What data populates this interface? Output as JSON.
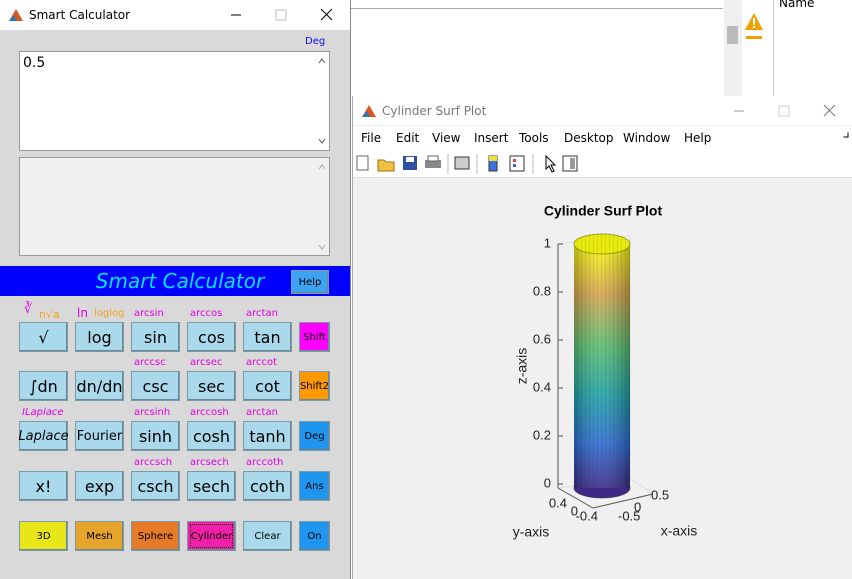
{
  "calculator": {
    "window_title": "Smart Calculator",
    "mode": "Deg",
    "input": "0.5",
    "banner": "Smart Calculator",
    "help": "Help",
    "rows": [
      {
        "buttons": [
          {
            "label": "√",
            "hints": [
              "∛",
              "n√a"
            ]
          },
          {
            "label": "log",
            "hints": [
              "ln",
              "loglog"
            ]
          },
          {
            "label": "sin",
            "hints": [
              "arcsin"
            ]
          },
          {
            "label": "cos",
            "hints": [
              "arccos"
            ]
          },
          {
            "label": "tan",
            "hints": [
              "arctan"
            ]
          },
          {
            "label": "Shift",
            "color": "#ff00ff"
          }
        ]
      },
      {
        "buttons": [
          {
            "label": "∫dn"
          },
          {
            "label": "dn/dn"
          },
          {
            "label": "csc",
            "hints": [
              "arccsc"
            ]
          },
          {
            "label": "sec",
            "hints": [
              "arcsec"
            ]
          },
          {
            "label": "cot",
            "hints": [
              "arccot"
            ]
          },
          {
            "label": "Shift2",
            "color": "#ff9900"
          }
        ]
      },
      {
        "buttons": [
          {
            "label": "Laplace",
            "hints": [
              "ILaplace"
            ]
          },
          {
            "label": "Fourier"
          },
          {
            "label": "sinh",
            "hints": [
              "arcsinh"
            ]
          },
          {
            "label": "cosh",
            "hints": [
              "arccosh"
            ]
          },
          {
            "label": "tanh",
            "hints": [
              "arctan"
            ]
          },
          {
            "label": "Deg",
            "color": "#1e96f0"
          }
        ]
      },
      {
        "buttons": [
          {
            "label": "x!"
          },
          {
            "label": "exp"
          },
          {
            "label": "csch",
            "hints": [
              "arccsch"
            ]
          },
          {
            "label": "sech",
            "hints": [
              "arcsech"
            ]
          },
          {
            "label": "coth",
            "hints": [
              "arccoth"
            ]
          },
          {
            "label": "Ans",
            "color": "#1e96f0"
          }
        ]
      },
      {
        "buttons": [
          {
            "label": "3D",
            "color": "#e6e619"
          },
          {
            "label": "Mesh",
            "color": "#e6a52a"
          },
          {
            "label": "Sphere",
            "color": "#e67a26"
          },
          {
            "label": "Cylinder",
            "color": "#f21fa8"
          },
          {
            "label": "Clear"
          },
          {
            "label": "On",
            "color": "#1e96f0"
          }
        ]
      }
    ]
  },
  "background": {
    "column_header": "Name"
  },
  "figure": {
    "window_title": "Cylinder Surf Plot",
    "menu": [
      "File",
      "Edit",
      "View",
      "Insert",
      "Tools",
      "Desktop",
      "Window",
      "Help"
    ],
    "plot": {
      "title": "Cylinder Surf Plot",
      "zticks": [
        "1",
        "0.8",
        "0.6",
        "0.4",
        "0.2",
        "0"
      ],
      "yticks": [
        "0.4",
        "0",
        "-0.4"
      ],
      "xticks": [
        "-0.5",
        "0",
        "0.5"
      ],
      "zlabel": "z-axis",
      "ylabel": "y-axis",
      "xlabel": "x-axis"
    }
  }
}
